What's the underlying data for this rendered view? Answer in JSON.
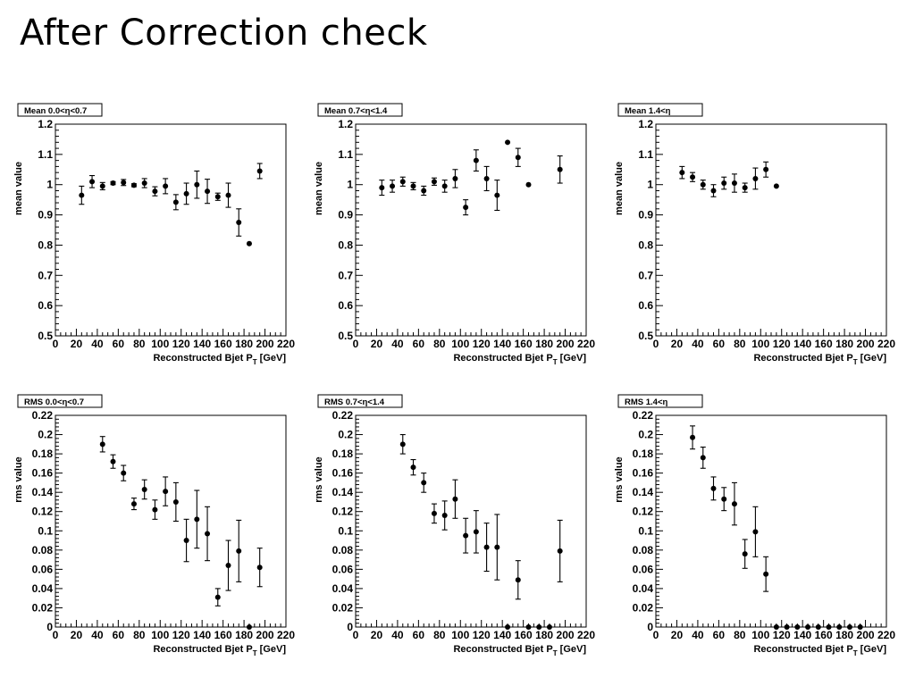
{
  "slide": {
    "title": "After Correction check"
  },
  "chart_data": [
    {
      "type": "scatter",
      "title": "Mean 0.0<η<0.7",
      "xlabel": "Reconstructed Bjet P_T [GeV]",
      "ylabel": "mean value",
      "xlim": [
        0,
        220
      ],
      "ylim": [
        0.5,
        1.2
      ],
      "xticks": [
        0,
        20,
        40,
        60,
        80,
        100,
        120,
        140,
        160,
        180,
        200,
        220
      ],
      "xtick_labels": [
        "0",
        "20",
        "40",
        "60",
        "80",
        "100",
        "120",
        "140",
        "160",
        "180",
        "200",
        "220"
      ],
      "yticks": [
        0.5,
        0.6,
        0.7,
        0.8,
        0.9,
        1.0,
        1.1,
        1.2
      ],
      "ytick_labels": [
        "0.5",
        "0.6",
        "0.7",
        "0.8",
        "0.9",
        "1",
        "1.1",
        "1.2"
      ],
      "points": [
        {
          "x": 25,
          "y": 0.965,
          "err": 0.03
        },
        {
          "x": 35,
          "y": 1.01,
          "err": 0.02
        },
        {
          "x": 45,
          "y": 0.995,
          "err": 0.012
        },
        {
          "x": 55,
          "y": 1.005,
          "err": 0.005
        },
        {
          "x": 65,
          "y": 1.007,
          "err": 0.01
        },
        {
          "x": 75,
          "y": 0.998,
          "err": 0.005
        },
        {
          "x": 85,
          "y": 1.005,
          "err": 0.015
        },
        {
          "x": 95,
          "y": 0.978,
          "err": 0.015
        },
        {
          "x": 105,
          "y": 0.995,
          "err": 0.025
        },
        {
          "x": 115,
          "y": 0.942,
          "err": 0.025
        },
        {
          "x": 125,
          "y": 0.97,
          "err": 0.035
        },
        {
          "x": 135,
          "y": 1.0,
          "err": 0.045
        },
        {
          "x": 145,
          "y": 0.978,
          "err": 0.04
        },
        {
          "x": 155,
          "y": 0.96,
          "err": 0.012
        },
        {
          "x": 165,
          "y": 0.965,
          "err": 0.04
        },
        {
          "x": 175,
          "y": 0.875,
          "err": 0.045
        },
        {
          "x": 185,
          "y": 0.805,
          "err": 0.0
        },
        {
          "x": 195,
          "y": 1.045,
          "err": 0.025
        }
      ]
    },
    {
      "type": "scatter",
      "title": "Mean 0.7<η<1.4",
      "xlabel": "Reconstructed Bjet P_T [GeV]",
      "ylabel": "mean value",
      "xlim": [
        0,
        220
      ],
      "ylim": [
        0.5,
        1.2
      ],
      "xticks": [
        0,
        20,
        40,
        60,
        80,
        100,
        120,
        140,
        160,
        180,
        200,
        220
      ],
      "xtick_labels": [
        "0",
        "20",
        "40",
        "60",
        "80",
        "100",
        "120",
        "140",
        "160",
        "180",
        "200",
        "220"
      ],
      "yticks": [
        0.5,
        0.6,
        0.7,
        0.8,
        0.9,
        1.0,
        1.1,
        1.2
      ],
      "ytick_labels": [
        "0.5",
        "0.6",
        "0.7",
        "0.8",
        "0.9",
        "1",
        "1.1",
        "1.2"
      ],
      "points": [
        {
          "x": 25,
          "y": 0.99,
          "err": 0.025
        },
        {
          "x": 35,
          "y": 0.995,
          "err": 0.02
        },
        {
          "x": 45,
          "y": 1.01,
          "err": 0.015
        },
        {
          "x": 55,
          "y": 0.995,
          "err": 0.012
        },
        {
          "x": 65,
          "y": 0.98,
          "err": 0.015
        },
        {
          "x": 75,
          "y": 1.01,
          "err": 0.012
        },
        {
          "x": 85,
          "y": 0.995,
          "err": 0.02
        },
        {
          "x": 95,
          "y": 1.02,
          "err": 0.03
        },
        {
          "x": 105,
          "y": 0.925,
          "err": 0.025
        },
        {
          "x": 115,
          "y": 1.08,
          "err": 0.035
        },
        {
          "x": 125,
          "y": 1.02,
          "err": 0.04
        },
        {
          "x": 135,
          "y": 0.965,
          "err": 0.05
        },
        {
          "x": 145,
          "y": 1.14,
          "err": 0.0
        },
        {
          "x": 155,
          "y": 1.09,
          "err": 0.03
        },
        {
          "x": 165,
          "y": 1.0,
          "err": 0.0
        },
        {
          "x": 195,
          "y": 1.05,
          "err": 0.045
        }
      ]
    },
    {
      "type": "scatter",
      "title": "Mean 1.4<η",
      "xlabel": "Reconstructed Bjet P_T [GeV]",
      "ylabel": "mean value",
      "xlim": [
        0,
        220
      ],
      "ylim": [
        0.5,
        1.2
      ],
      "xticks": [
        0,
        20,
        40,
        60,
        80,
        100,
        120,
        140,
        160,
        180,
        200,
        220
      ],
      "xtick_labels": [
        "0",
        "20",
        "40",
        "60",
        "80",
        "100",
        "120",
        "140",
        "160",
        "180",
        "200",
        "220"
      ],
      "yticks": [
        0.5,
        0.6,
        0.7,
        0.8,
        0.9,
        1.0,
        1.1,
        1.2
      ],
      "ytick_labels": [
        "0.5",
        "0.6",
        "0.7",
        "0.8",
        "0.9",
        "1",
        "1.1",
        "1.2"
      ],
      "points": [
        {
          "x": 25,
          "y": 1.04,
          "err": 0.02
        },
        {
          "x": 35,
          "y": 1.025,
          "err": 0.015
        },
        {
          "x": 45,
          "y": 1.0,
          "err": 0.015
        },
        {
          "x": 55,
          "y": 0.98,
          "err": 0.02
        },
        {
          "x": 65,
          "y": 1.005,
          "err": 0.02
        },
        {
          "x": 75,
          "y": 1.005,
          "err": 0.03
        },
        {
          "x": 85,
          "y": 0.99,
          "err": 0.015
        },
        {
          "x": 95,
          "y": 1.02,
          "err": 0.035
        },
        {
          "x": 105,
          "y": 1.05,
          "err": 0.025
        },
        {
          "x": 115,
          "y": 0.995,
          "err": 0.0
        }
      ]
    },
    {
      "type": "scatter",
      "title": "RMS 0.0<η<0.7",
      "xlabel": "Reconstructed Bjet P_T [GeV]",
      "ylabel": "rms value",
      "xlim": [
        0,
        220
      ],
      "ylim": [
        0,
        0.22
      ],
      "xticks": [
        0,
        20,
        40,
        60,
        80,
        100,
        120,
        140,
        160,
        180,
        200,
        220
      ],
      "xtick_labels": [
        "0",
        "20",
        "40",
        "60",
        "80",
        "100",
        "120",
        "140",
        "160",
        "180",
        "200",
        "220"
      ],
      "yticks": [
        0,
        0.02,
        0.04,
        0.06,
        0.08,
        0.1,
        0.12,
        0.14,
        0.16,
        0.18,
        0.2,
        0.22
      ],
      "ytick_labels": [
        "0",
        "0.02",
        "0.04",
        "0.06",
        "0.08",
        "0.1",
        "0.12",
        "0.14",
        "0.16",
        "0.18",
        "0.2",
        "0.22"
      ],
      "points": [
        {
          "x": 45,
          "y": 0.19,
          "err": 0.008
        },
        {
          "x": 55,
          "y": 0.172,
          "err": 0.007
        },
        {
          "x": 65,
          "y": 0.16,
          "err": 0.008
        },
        {
          "x": 75,
          "y": 0.128,
          "err": 0.006
        },
        {
          "x": 85,
          "y": 0.143,
          "err": 0.01
        },
        {
          "x": 95,
          "y": 0.122,
          "err": 0.01
        },
        {
          "x": 105,
          "y": 0.141,
          "err": 0.015
        },
        {
          "x": 115,
          "y": 0.13,
          "err": 0.02
        },
        {
          "x": 125,
          "y": 0.09,
          "err": 0.022
        },
        {
          "x": 135,
          "y": 0.112,
          "err": 0.03
        },
        {
          "x": 145,
          "y": 0.097,
          "err": 0.028
        },
        {
          "x": 155,
          "y": 0.031,
          "err": 0.009
        },
        {
          "x": 165,
          "y": 0.064,
          "err": 0.026
        },
        {
          "x": 175,
          "y": 0.079,
          "err": 0.032
        },
        {
          "x": 185,
          "y": 0.0,
          "err": 0.0
        },
        {
          "x": 195,
          "y": 0.062,
          "err": 0.02
        }
      ]
    },
    {
      "type": "scatter",
      "title": "RMS 0.7<η<1.4",
      "xlabel": "Reconstructed Bjet P_T [GeV]",
      "ylabel": "rms value",
      "xlim": [
        0,
        220
      ],
      "ylim": [
        0,
        0.22
      ],
      "xticks": [
        0,
        20,
        40,
        60,
        80,
        100,
        120,
        140,
        160,
        180,
        200,
        220
      ],
      "xtick_labels": [
        "0",
        "20",
        "40",
        "60",
        "80",
        "100",
        "120",
        "140",
        "160",
        "180",
        "200",
        "220"
      ],
      "yticks": [
        0,
        0.02,
        0.04,
        0.06,
        0.08,
        0.1,
        0.12,
        0.14,
        0.16,
        0.18,
        0.2,
        0.22
      ],
      "ytick_labels": [
        "0",
        "0.02",
        "0.04",
        "0.06",
        "0.08",
        "0.1",
        "0.12",
        "0.14",
        "0.16",
        "0.18",
        "0.2",
        "0.22"
      ],
      "points": [
        {
          "x": 45,
          "y": 0.19,
          "err": 0.01
        },
        {
          "x": 55,
          "y": 0.166,
          "err": 0.008
        },
        {
          "x": 65,
          "y": 0.15,
          "err": 0.01
        },
        {
          "x": 75,
          "y": 0.118,
          "err": 0.01
        },
        {
          "x": 85,
          "y": 0.116,
          "err": 0.015
        },
        {
          "x": 95,
          "y": 0.133,
          "err": 0.02
        },
        {
          "x": 105,
          "y": 0.095,
          "err": 0.018
        },
        {
          "x": 115,
          "y": 0.099,
          "err": 0.022
        },
        {
          "x": 125,
          "y": 0.083,
          "err": 0.025
        },
        {
          "x": 135,
          "y": 0.083,
          "err": 0.034
        },
        {
          "x": 145,
          "y": 0.0,
          "err": 0.0
        },
        {
          "x": 155,
          "y": 0.049,
          "err": 0.02
        },
        {
          "x": 165,
          "y": 0.0,
          "err": 0.0
        },
        {
          "x": 175,
          "y": 0.0,
          "err": 0.0
        },
        {
          "x": 185,
          "y": 0.0,
          "err": 0.0
        },
        {
          "x": 195,
          "y": 0.079,
          "err": 0.032
        }
      ]
    },
    {
      "type": "scatter",
      "title": "RMS 1.4<η",
      "xlabel": "Reconstructed Bjet P_T [GeV]",
      "ylabel": "rms value",
      "xlim": [
        0,
        220
      ],
      "ylim": [
        0,
        0.22
      ],
      "xticks": [
        0,
        20,
        40,
        60,
        80,
        100,
        120,
        140,
        160,
        180,
        200,
        220
      ],
      "xtick_labels": [
        "0",
        "20",
        "40",
        "60",
        "80",
        "100",
        "120",
        "140",
        "160",
        "180",
        "200",
        "220"
      ],
      "yticks": [
        0,
        0.02,
        0.04,
        0.06,
        0.08,
        0.1,
        0.12,
        0.14,
        0.16,
        0.18,
        0.2,
        0.22
      ],
      "ytick_labels": [
        "0",
        "0.02",
        "0.04",
        "0.06",
        "0.08",
        "0.1",
        "0.12",
        "0.14",
        "0.16",
        "0.18",
        "0.2",
        "0.22"
      ],
      "points": [
        {
          "x": 35,
          "y": 0.197,
          "err": 0.012
        },
        {
          "x": 45,
          "y": 0.176,
          "err": 0.011
        },
        {
          "x": 55,
          "y": 0.144,
          "err": 0.012
        },
        {
          "x": 65,
          "y": 0.133,
          "err": 0.012
        },
        {
          "x": 75,
          "y": 0.128,
          "err": 0.022
        },
        {
          "x": 85,
          "y": 0.076,
          "err": 0.015
        },
        {
          "x": 95,
          "y": 0.099,
          "err": 0.026
        },
        {
          "x": 105,
          "y": 0.055,
          "err": 0.018
        },
        {
          "x": 115,
          "y": 0.0,
          "err": 0.0
        },
        {
          "x": 125,
          "y": 0.0,
          "err": 0.0
        },
        {
          "x": 135,
          "y": 0.0,
          "err": 0.0
        },
        {
          "x": 145,
          "y": 0.0,
          "err": 0.0
        },
        {
          "x": 155,
          "y": 0.0,
          "err": 0.0
        },
        {
          "x": 165,
          "y": 0.0,
          "err": 0.0
        },
        {
          "x": 175,
          "y": 0.0,
          "err": 0.0
        },
        {
          "x": 185,
          "y": 0.0,
          "err": 0.0
        },
        {
          "x": 195,
          "y": 0.0,
          "err": 0.0
        }
      ]
    }
  ]
}
